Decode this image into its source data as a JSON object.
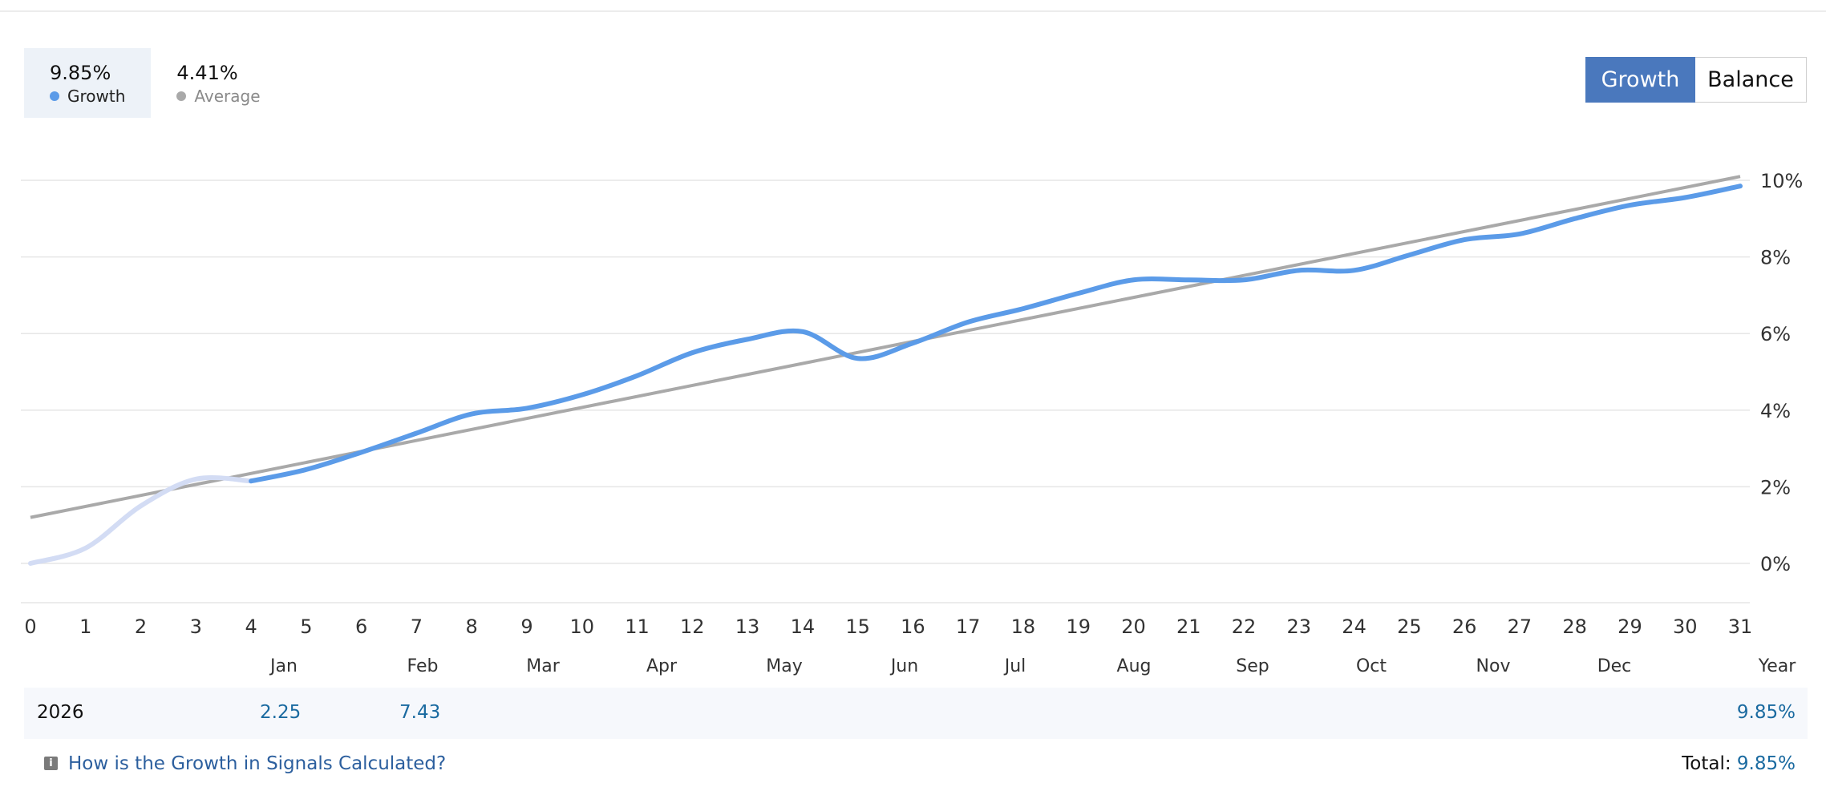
{
  "legend": {
    "growth": {
      "value": "9.85%",
      "label": "Growth",
      "color": "#5b9be8"
    },
    "average": {
      "value": "4.41%",
      "label": "Average",
      "color": "#a9a9a9"
    }
  },
  "switcher": {
    "growth_label": "Growth",
    "balance_label": "Balance"
  },
  "chart_data": {
    "type": "line",
    "title": "",
    "x": [
      0,
      1,
      2,
      3,
      4,
      5,
      6,
      7,
      8,
      9,
      10,
      11,
      12,
      13,
      14,
      15,
      16,
      17,
      18,
      19,
      20,
      21,
      22,
      23,
      24,
      25,
      26,
      27,
      28,
      29,
      30,
      31
    ],
    "x_ticks": [
      "0",
      "1",
      "2",
      "3",
      "4",
      "5",
      "6",
      "7",
      "8",
      "9",
      "10",
      "11",
      "12",
      "13",
      "14",
      "15",
      "16",
      "17",
      "18",
      "19",
      "20",
      "21",
      "22",
      "23",
      "24",
      "25",
      "26",
      "27",
      "28",
      "29",
      "30",
      "31"
    ],
    "y_ticks": [
      "0%",
      "2%",
      "4%",
      "6%",
      "8%",
      "10%"
    ],
    "ylim": [
      -1.0,
      11.0
    ],
    "grid": true,
    "series": [
      {
        "name": "Growth",
        "color": "#5b9be8",
        "x": [
          0,
          1,
          2,
          3,
          4,
          5,
          6,
          7,
          8,
          9,
          10,
          11,
          12,
          13,
          14,
          15,
          16,
          17,
          18,
          19,
          20,
          21,
          22,
          23,
          24,
          25,
          26,
          27,
          28,
          29,
          30,
          31
        ],
        "values": [
          0.0,
          0.4,
          1.5,
          2.2,
          2.15,
          2.45,
          2.9,
          3.4,
          3.9,
          4.05,
          4.4,
          4.9,
          5.5,
          5.85,
          6.05,
          5.35,
          5.75,
          6.3,
          6.65,
          7.05,
          7.4,
          7.4,
          7.4,
          7.65,
          7.65,
          8.05,
          8.45,
          8.6,
          9.0,
          9.35,
          9.55,
          9.85
        ],
        "faded_until_x": 4,
        "faded_color": "#d3dcf4"
      },
      {
        "name": "Average",
        "color": "#a9a9a9",
        "x": [
          0,
          31
        ],
        "values": [
          1.2,
          10.1
        ]
      }
    ],
    "month_labels": [
      "Jan",
      "Feb",
      "Mar",
      "Apr",
      "May",
      "Jun",
      "Jul",
      "Aug",
      "Sep",
      "Oct",
      "Nov",
      "Dec",
      "Year"
    ]
  },
  "year_row": {
    "year": "2026",
    "values": [
      "2.25",
      "7.43"
    ],
    "year_total": "9.85%"
  },
  "footer": {
    "help_text": "How is the Growth in Signals Calculated?",
    "total_label": "Total:",
    "total_value": "9.85%"
  }
}
